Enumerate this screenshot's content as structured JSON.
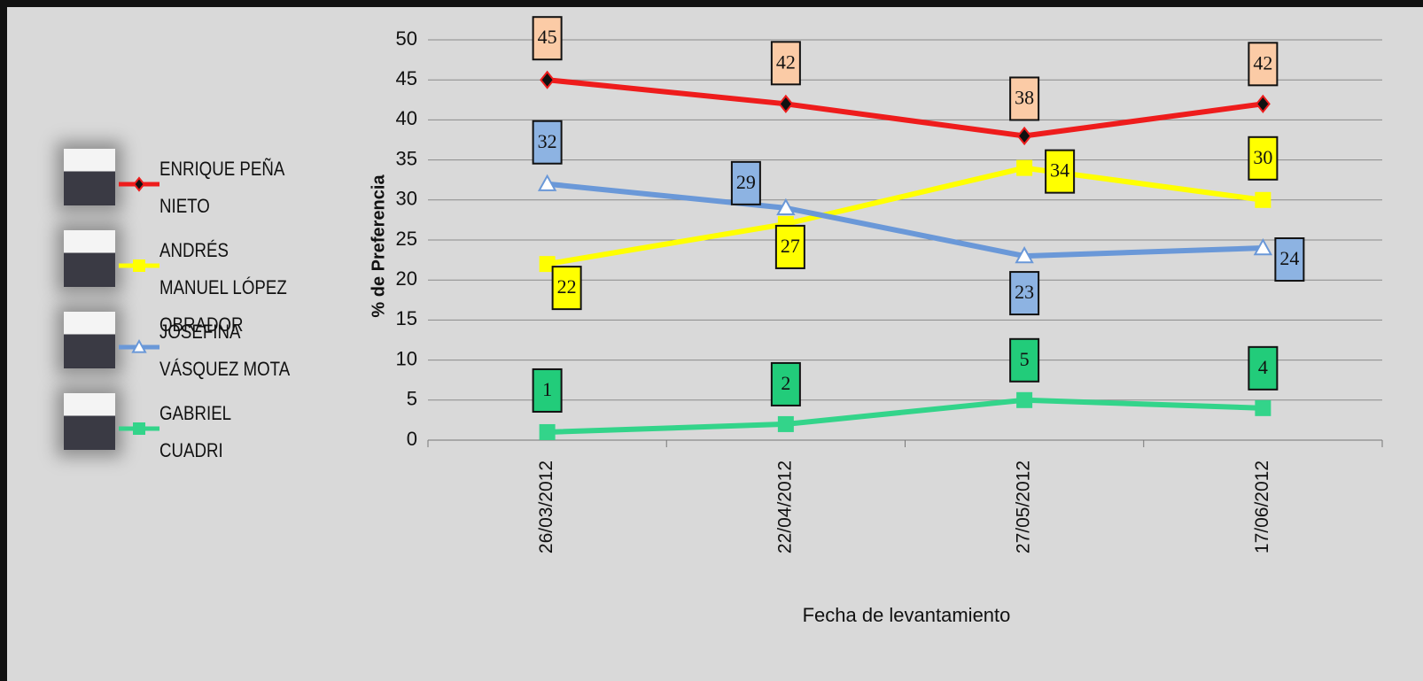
{
  "chart_data": {
    "type": "line",
    "y_label": "% de Preferencia",
    "x_label": "Fecha de levantamiento",
    "categories": [
      "26/03/2012",
      "22/04/2012",
      "27/05/2012",
      "17/06/2012"
    ],
    "series": [
      {
        "name": "ENRIQUE PEÑA NIETO",
        "color": "#ee1c1c",
        "marker": "diamond",
        "label_color": "#fbcba6",
        "values": [
          45,
          42,
          38,
          42
        ]
      },
      {
        "name": "ANDRÉS MANUEL LÓPEZ OBRADOR",
        "color": "#ffff00",
        "marker": "square",
        "label_color": "#ffff00",
        "values": [
          22,
          27,
          34,
          30
        ]
      },
      {
        "name": "JOSEFINA VÁSQUEZ MOTA",
        "color": "#6a98d8",
        "marker": "triangle",
        "label_color": "#8db3e2",
        "values": [
          32,
          29,
          23,
          24
        ]
      },
      {
        "name": "GABRIEL CUADRI",
        "color": "#33d48a",
        "marker": "square",
        "label_color": "#22cc7a",
        "values": [
          1,
          2,
          5,
          4
        ]
      }
    ],
    "ylim": [
      0,
      50
    ],
    "yticks": [
      0,
      5,
      10,
      15,
      20,
      25,
      30,
      35,
      40,
      45,
      50
    ],
    "grid": true
  }
}
